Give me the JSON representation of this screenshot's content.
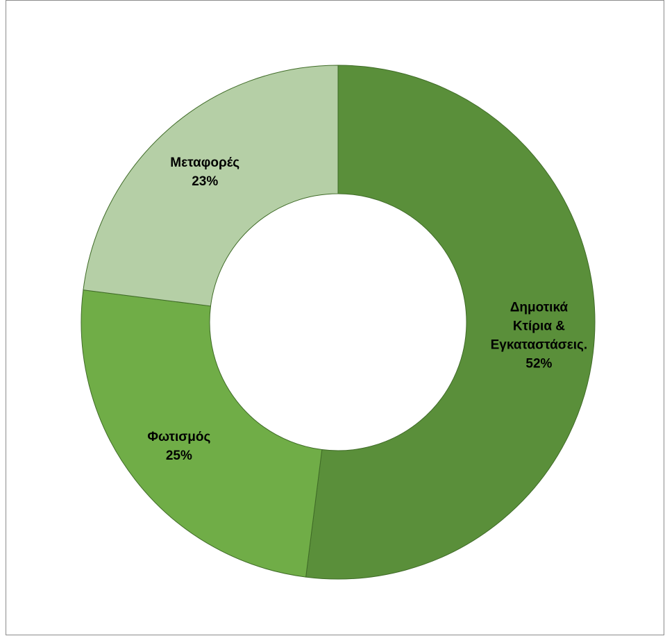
{
  "chart_data": {
    "type": "pie",
    "variant": "donut",
    "title": "",
    "slices": [
      {
        "label": "Δημοτικά Κτίρια & Εγκαταστάσεις.",
        "label_lines": [
          "Δημοτικά",
          "Κτίρια &",
          "Εγκαταστάσεις."
        ],
        "value": 52,
        "value_label": "52%",
        "color": "#5a8f3a"
      },
      {
        "label": "Φωτισμός",
        "label_lines": [
          "Φωτισμός"
        ],
        "value": 25,
        "value_label": "25%",
        "color": "#70ad47"
      },
      {
        "label": "Μεταφορές",
        "label_lines": [
          "Μεταφορές"
        ],
        "value": 23,
        "value_label": "23%",
        "color": "#b5cfa6"
      }
    ],
    "legend": "none",
    "start_angle_deg": 0,
    "direction": "clockwise",
    "slice_border_color": "#3f6b27"
  }
}
